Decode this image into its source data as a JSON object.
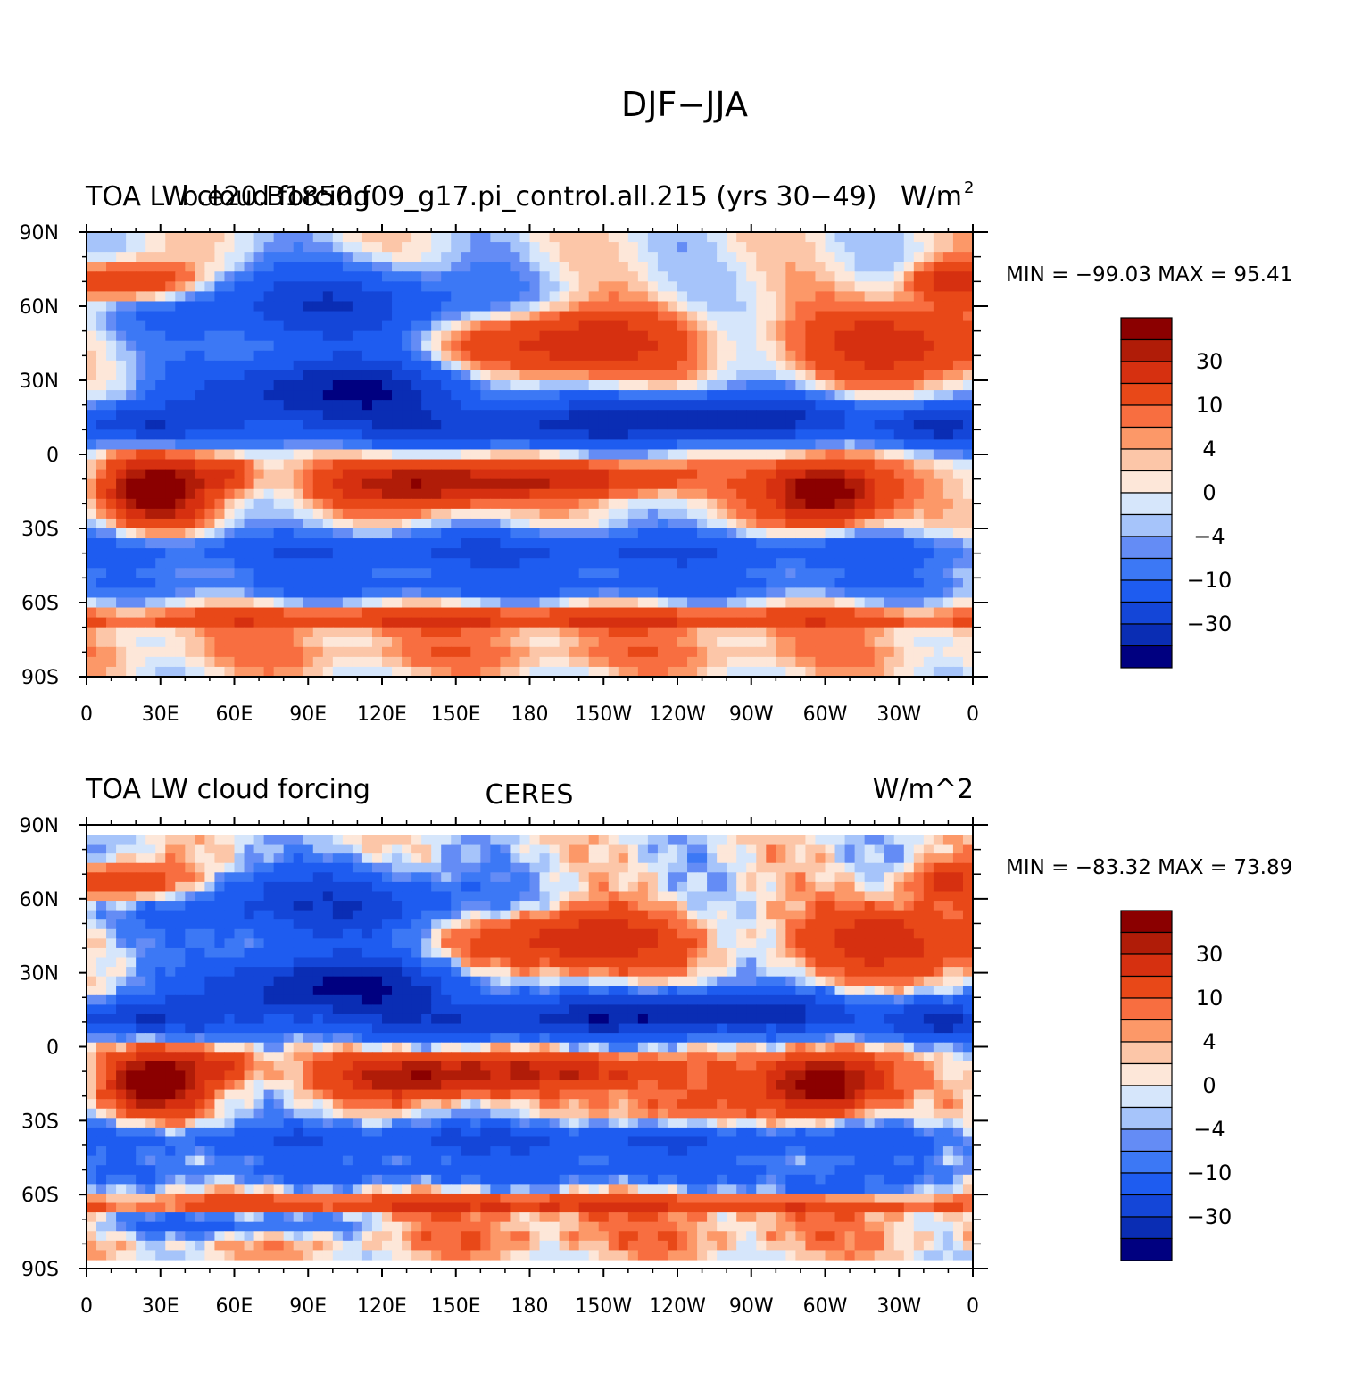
{
  "figure_title": "DJF−JJA",
  "colors": [
    "#000080",
    "#0a2db4",
    "#1446d8",
    "#1e5cf0",
    "#3c78f5",
    "#648cf5",
    "#a6c4fa",
    "#d6e6fb",
    "#fde7d9",
    "#fcc6a8",
    "#fc9868",
    "#f86e40",
    "#e84818",
    "#d63010",
    "#b01c08",
    "#8b0000"
  ],
  "chart_data": [
    {
      "type": "heatmap",
      "left_title": "TOA LW cloud forcing",
      "center_title": "b.e20.B1850.f09_g17.pi_control.all.215 (yrs 30−49)",
      "right_title": "W/m",
      "right_title_sup": "2",
      "min_max": "MIN = −99.03 MAX =   95.41",
      "colorbar_labels": [
        "30",
        "10",
        "4",
        "0",
        "−4",
        "−10",
        "−30"
      ]
    },
    {
      "type": "heatmap",
      "left_title": "TOA LW cloud forcing",
      "center_title": "CERES",
      "right_title": "W/m^2",
      "min_max": "MIN = −83.32 MAX =   73.89",
      "colorbar_labels": [
        "30",
        "10",
        "4",
        "0",
        "−4",
        "−10",
        "−30"
      ]
    }
  ],
  "axes": {
    "x_ticks": [
      "0",
      "30E",
      "60E",
      "90E",
      "120E",
      "150E",
      "180",
      "150W",
      "120W",
      "90W",
      "60W",
      "30W",
      "0"
    ],
    "y_ticks": [
      "90N",
      "60N",
      "30N",
      "0",
      "30S",
      "60S",
      "90S"
    ]
  }
}
